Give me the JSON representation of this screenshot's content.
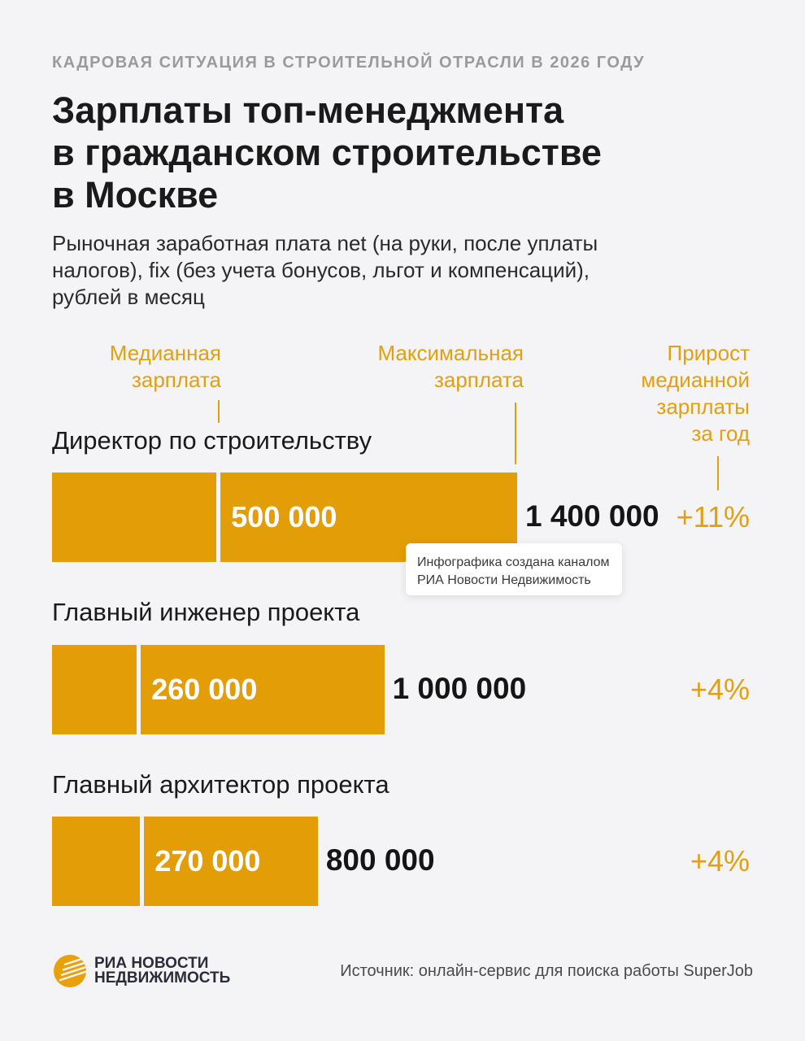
{
  "kicker": "КАДРОВАЯ СИТУАЦИЯ В СТРОИТЕЛЬНОЙ ОТРАСЛИ В 2026 ГОДУ",
  "title_lines": [
    "Зарплаты топ-менеджмента",
    "в гражданском строительстве",
    "в Москве"
  ],
  "subtitle_lines": [
    "Рыночная заработная плата net (на руки, после уплаты",
    "налогов), fix (без учета бонусов, льгот и компенсаций),",
    "рублей в месяц"
  ],
  "headers": {
    "median_lines": [
      "Медианная",
      "зарплата"
    ],
    "max_lines": [
      "Максимальная",
      "зарплата"
    ],
    "growth_lines": [
      "Прирост",
      "медианной",
      "зарплаты",
      "за год"
    ]
  },
  "colors": {
    "accent": "#e39d06",
    "accent_text": "#e0a012",
    "background": "#f4f4f6"
  },
  "chart_data": {
    "type": "bar",
    "orientation": "horizontal",
    "unit": "рублей в месяц",
    "categories": [
      "Директор по строительству",
      "Главный инженер проекта",
      "Главный архитектор проекта"
    ],
    "series": [
      {
        "name": "Медианная зарплата",
        "values": [
          500000,
          260000,
          270000
        ],
        "labels": [
          "500 000",
          "260 000",
          "270 000"
        ]
      },
      {
        "name": "Максимальная зарплата",
        "values": [
          1400000,
          1000000,
          800000
        ],
        "labels": [
          "1 400 000",
          "1 000 000",
          "800 000"
        ]
      },
      {
        "name": "Прирост медианной зарплаты за год",
        "values": [
          11,
          4,
          4
        ],
        "labels": [
          "+11%",
          "+4%",
          "+4%"
        ]
      }
    ]
  },
  "tooltip_lines": [
    "Инфографика создана каналом",
    "РИА Новости Недвижимость"
  ],
  "logo": {
    "line1": "РИА НОВОСТИ",
    "line2": "НЕДВИЖИМОСТЬ",
    "icon": "ria-sun-icon"
  },
  "source": "Источник: онлайн-сервис для поиска работы SuperJob"
}
